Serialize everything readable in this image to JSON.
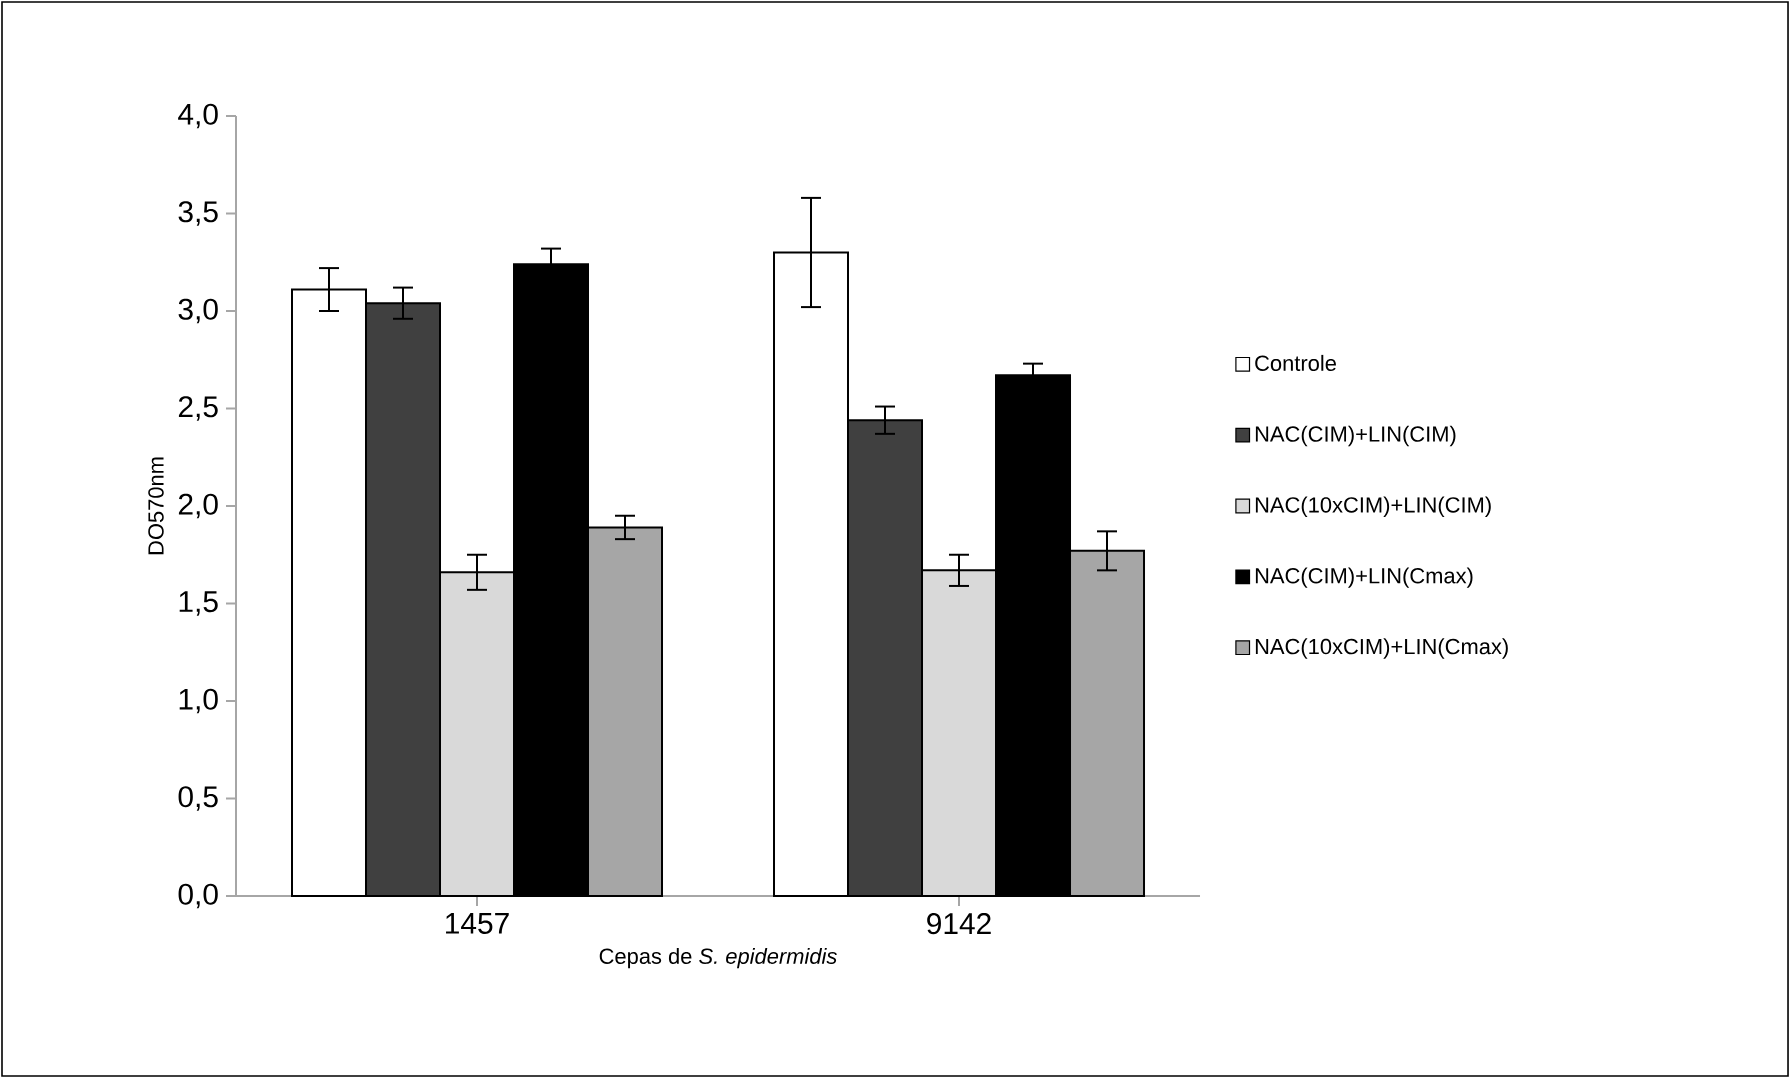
{
  "chart_data": {
    "type": "bar",
    "xlabel": "Cepas de *S. epidermidis*",
    "ylabel": "DO570nm",
    "categories": [
      "1457",
      "9142"
    ],
    "series": [
      {
        "name": "Controle",
        "color": "#ffffff",
        "values": [
          3.11,
          3.3
        ],
        "errors": [
          0.11,
          0.28
        ]
      },
      {
        "name": "NAC(CIM)+LIN(CIM)",
        "color": "#404040",
        "values": [
          3.04,
          2.44
        ],
        "errors": [
          0.08,
          0.07
        ]
      },
      {
        "name": "NAC(10xCIM)+LIN(CIM)",
        "color": "#d9d9d9",
        "values": [
          1.66,
          1.67
        ],
        "errors": [
          0.09,
          0.08
        ]
      },
      {
        "name": "NAC(CIM)+LIN(Cmax)",
        "color": "#000000",
        "values": [
          3.24,
          2.67
        ],
        "errors": [
          0.08,
          0.06
        ]
      },
      {
        "name": "NAC(10xCIM)+LIN(Cmax)",
        "color": "#a6a6a6",
        "values": [
          1.89,
          1.77
        ],
        "errors": [
          0.06,
          0.1
        ]
      }
    ],
    "ylim": [
      0,
      4
    ],
    "yticks": [
      {
        "value": 0,
        "label": "0,0"
      },
      {
        "value": 0.5,
        "label": "0,5"
      },
      {
        "value": 1,
        "label": "1,0"
      },
      {
        "value": 1.5,
        "label": "1,5"
      },
      {
        "value": 2,
        "label": "2,0"
      },
      {
        "value": 2.5,
        "label": "2,5"
      },
      {
        "value": 3,
        "label": "3,0"
      },
      {
        "value": 3.5,
        "label": "3,5"
      },
      {
        "value": 4,
        "label": "4,0"
      }
    ],
    "legend": "right"
  }
}
